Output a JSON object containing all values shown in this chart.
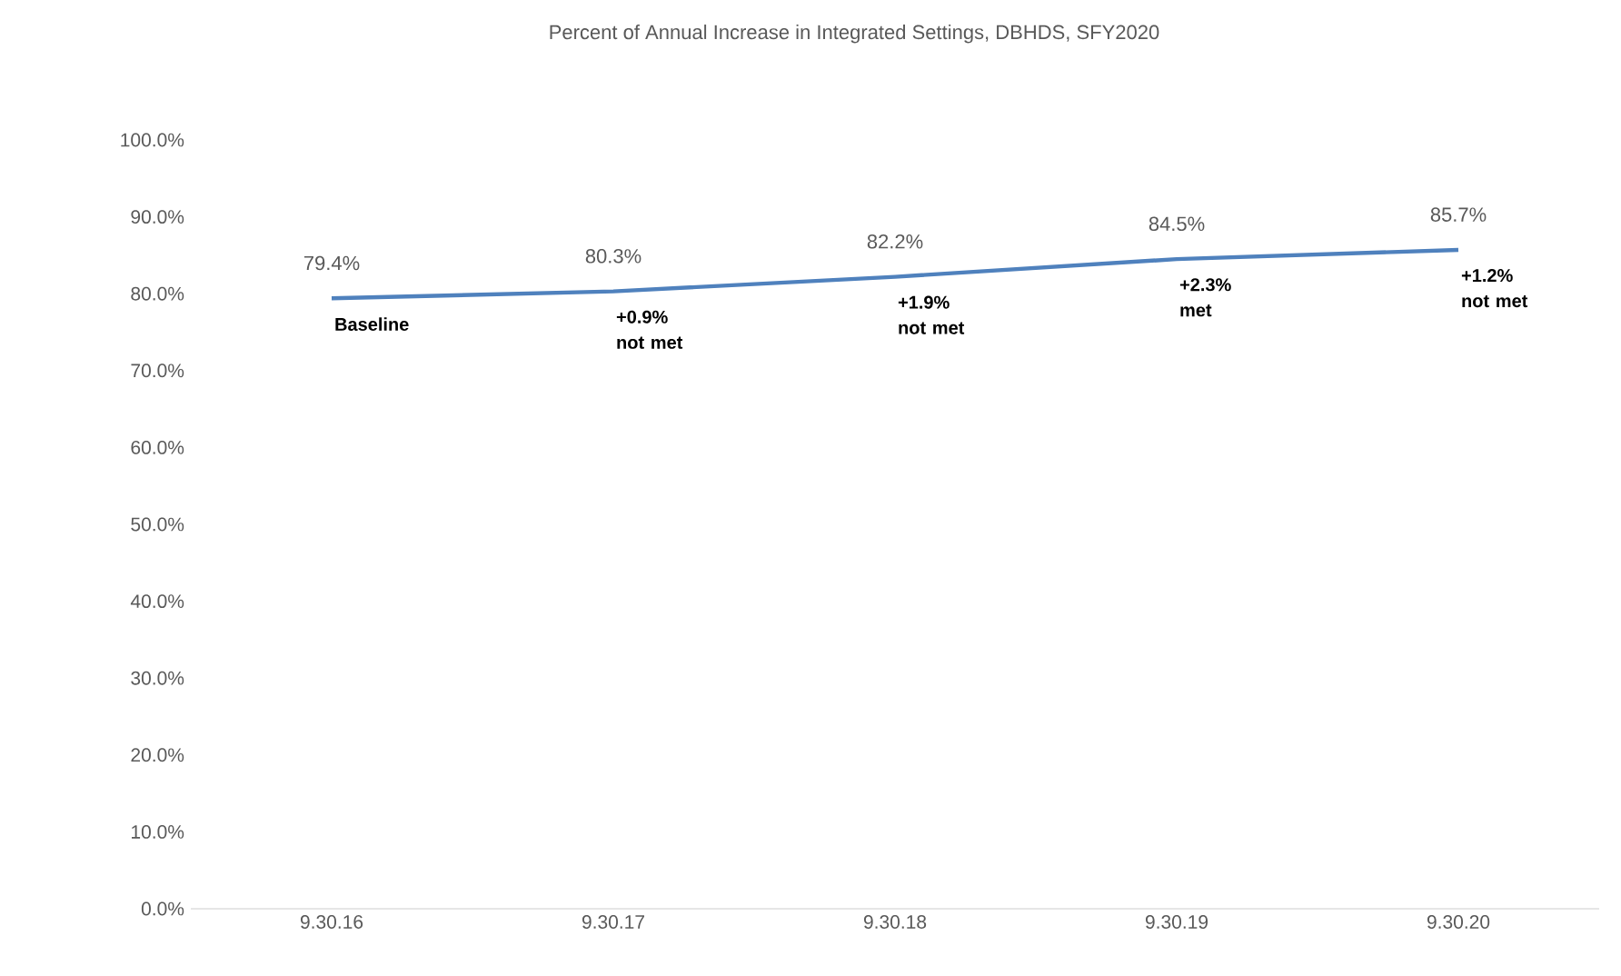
{
  "chart_data": {
    "type": "line",
    "title": "Percent of Annual Increase in Integrated Settings, DBHDS, SFY2020",
    "categories": [
      "9.30.16",
      "9.30.17",
      "9.30.18",
      "9.30.19",
      "9.30.20"
    ],
    "series": [
      {
        "color": "#4f81bd",
        "values": [
          79.4,
          80.3,
          82.2,
          84.5,
          85.7
        ]
      }
    ],
    "value_labels": [
      "79.4%",
      "80.3%",
      "82.2%",
      "84.5%",
      "85.7%"
    ],
    "ylim": [
      0,
      100
    ],
    "yticks": [
      {
        "value": 0,
        "label": "0.0%"
      },
      {
        "value": 10,
        "label": "10.0%"
      },
      {
        "value": 20,
        "label": "20.0%"
      },
      {
        "value": 30,
        "label": "30.0%"
      },
      {
        "value": 40,
        "label": "40.0%"
      },
      {
        "value": 50,
        "label": "50.0%"
      },
      {
        "value": 60,
        "label": "60.0%"
      },
      {
        "value": 70,
        "label": "70.0%"
      },
      {
        "value": 80,
        "label": "80.0%"
      },
      {
        "value": 90,
        "label": "90.0%"
      },
      {
        "value": 100,
        "label": "100.0%"
      }
    ],
    "annotations": [
      {
        "text": "**Baseline**",
        "x": "9.30.16",
        "y": 79.4
      },
      {
        "text": "**+0.9% not met**",
        "x": "9.30.17",
        "y": 80.3
      },
      {
        "text": "**+1.9% not met**",
        "x": "9.30.18",
        "y": 82.2
      },
      {
        "text": "**+2.3% met**",
        "x": "9.30.19",
        "y": 84.5
      },
      {
        "text": "**+1.2% not met**",
        "x": "9.30.20",
        "y": 85.7
      }
    ],
    "grid": false,
    "marker": "none",
    "line_style": "solid"
  }
}
